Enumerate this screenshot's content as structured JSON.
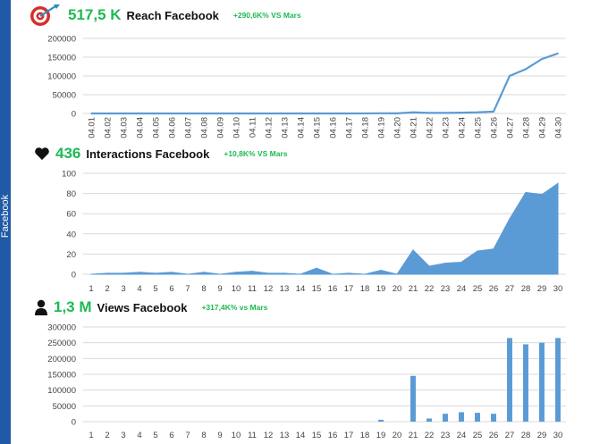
{
  "sidebar": {
    "label": "Facebook"
  },
  "colors": {
    "accent": "#1db954",
    "series": "#5b9bd5",
    "icon_red": "#d32f2f",
    "grid": "#d9d9d9"
  },
  "panels": [
    {
      "icon": "target-icon",
      "value": "517,5 K",
      "title": "Reach Facebook",
      "delta": "+290,6K% VS Mars"
    },
    {
      "icon": "heart-icon",
      "value": "436",
      "title": "Interactions Facebook",
      "delta": "+10,8K% VS Mars"
    },
    {
      "icon": "user-icon",
      "value": "1,3 M",
      "title": "Views Facebook",
      "delta": "+317,4K% vs Mars"
    }
  ],
  "chart_data": [
    {
      "type": "line",
      "title": "Reach Facebook",
      "categories": [
        "04.01",
        "04.02",
        "04.03",
        "04.04",
        "04.05",
        "04.06",
        "04.07",
        "04.08",
        "04.09",
        "04.10",
        "04.11",
        "04.12",
        "04.13",
        "04.14",
        "04.15",
        "04.16",
        "04.17",
        "04.18",
        "04.19",
        "04.20",
        "04.21",
        "04.22",
        "04.23",
        "04.24",
        "04.25",
        "04.26",
        "04.27",
        "04.28",
        "04.29",
        "04.30"
      ],
      "values": [
        0,
        0,
        0,
        0,
        0,
        0,
        0,
        0,
        0,
        0,
        0,
        0,
        0,
        0,
        0,
        0,
        0,
        200,
        500,
        300,
        3000,
        1500,
        1500,
        2000,
        3000,
        5000,
        100000,
        118000,
        145000,
        160000
      ],
      "ylim": [
        0,
        200000
      ],
      "yticks": [
        "0",
        "50000",
        "100000",
        "150000",
        "200000"
      ],
      "grid": true
    },
    {
      "type": "area",
      "title": "Interactions Facebook",
      "categories": [
        "1",
        "2",
        "3",
        "4",
        "5",
        "6",
        "7",
        "8",
        "9",
        "10",
        "11",
        "12",
        "13",
        "14",
        "15",
        "16",
        "17",
        "18",
        "19",
        "20",
        "21",
        "22",
        "23",
        "24",
        "25",
        "26",
        "27",
        "28",
        "29",
        "30"
      ],
      "values": [
        0,
        1,
        1,
        2,
        1,
        2,
        0,
        2,
        0,
        2,
        3,
        1,
        1,
        0,
        6,
        0,
        1,
        0,
        4,
        0,
        24,
        8,
        11,
        12,
        23,
        25,
        55,
        81,
        79,
        90
      ],
      "ylim": [
        0,
        100
      ],
      "yticks": [
        "0",
        "20",
        "40",
        "60",
        "80",
        "100"
      ],
      "grid": true
    },
    {
      "type": "bar",
      "title": "Views Facebook",
      "categories": [
        "1",
        "2",
        "3",
        "4",
        "5",
        "6",
        "7",
        "8",
        "9",
        "10",
        "11",
        "12",
        "13",
        "14",
        "15",
        "16",
        "17",
        "18",
        "19",
        "20",
        "21",
        "22",
        "23",
        "24",
        "25",
        "26",
        "27",
        "28",
        "29",
        "30"
      ],
      "values": [
        0,
        0,
        0,
        0,
        0,
        0,
        0,
        0,
        0,
        0,
        0,
        0,
        0,
        0,
        0,
        0,
        0,
        0,
        6000,
        0,
        145000,
        10000,
        25000,
        30000,
        28000,
        25000,
        265000,
        245000,
        250000,
        265000
      ],
      "ylim": [
        0,
        300000
      ],
      "yticks": [
        "0",
        "50000",
        "100000",
        "150000",
        "200000",
        "250000",
        "300000"
      ],
      "grid": true
    }
  ]
}
